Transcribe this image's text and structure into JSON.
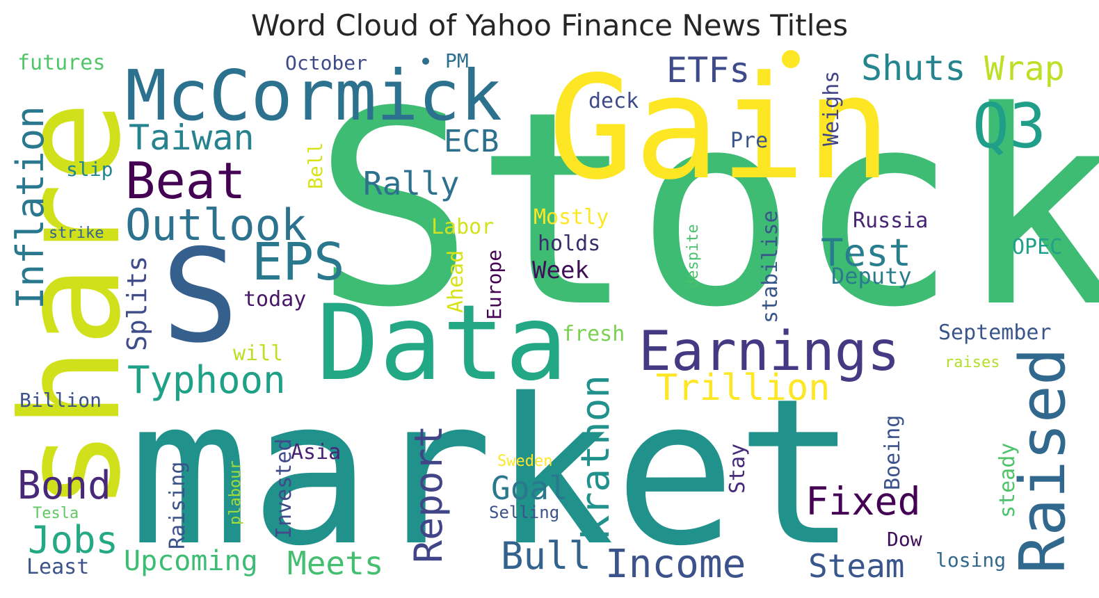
{
  "chart_data": {
    "type": "wordcloud",
    "title": "Word Cloud of Yahoo Finance News Titles",
    "colormap": "viridis",
    "words": [
      {
        "text": "Stock",
        "weight": 1.0,
        "color": "#3fbc73"
      },
      {
        "text": "market",
        "weight": 0.95,
        "color": "#21918c"
      },
      {
        "text": "Gain",
        "weight": 0.62,
        "color": "#fde725"
      },
      {
        "text": "share",
        "weight": 0.58,
        "color": "#d0e11c"
      },
      {
        "text": "S",
        "weight": 0.55,
        "color": "#355f8d"
      },
      {
        "text": "Data",
        "weight": 0.42,
        "color": "#22a884"
      },
      {
        "text": "McCormick",
        "weight": 0.3,
        "color": "#2c728e"
      },
      {
        "text": "Raised",
        "weight": 0.28,
        "color": "#31688e"
      },
      {
        "text": "Q3",
        "weight": 0.26,
        "color": "#1f9e89"
      },
      {
        "text": "Earnings",
        "weight": 0.22,
        "color": "#443983"
      },
      {
        "text": "EPS",
        "weight": 0.2,
        "color": "#2a788e"
      },
      {
        "text": "Beat",
        "weight": 0.19,
        "color": "#440154"
      },
      {
        "text": "Krathon",
        "weight": 0.15,
        "color": "#21918c"
      },
      {
        "text": "Outlook",
        "weight": 0.15,
        "color": "#2c728e"
      },
      {
        "text": "Inflation",
        "weight": 0.14,
        "color": "#2a788e"
      },
      {
        "text": "Income",
        "weight": 0.14,
        "color": "#3b528b"
      },
      {
        "text": "Report",
        "weight": 0.14,
        "color": "#414487"
      },
      {
        "text": "Trillion",
        "weight": 0.13,
        "color": "#fde725"
      },
      {
        "text": "Typhoon",
        "weight": 0.13,
        "color": "#1fa187"
      },
      {
        "text": "Test",
        "weight": 0.13,
        "color": "#287d8e"
      },
      {
        "text": "Bond",
        "weight": 0.13,
        "color": "#482878"
      },
      {
        "text": "Jobs",
        "weight": 0.13,
        "color": "#23a983"
      },
      {
        "text": "Fixed",
        "weight": 0.12,
        "color": "#440154"
      },
      {
        "text": "Bull",
        "weight": 0.12,
        "color": "#33638d"
      },
      {
        "text": "Taiwan",
        "weight": 0.12,
        "color": "#26828e"
      },
      {
        "text": "ETFs",
        "weight": 0.12,
        "color": "#3e4a89"
      },
      {
        "text": "Shuts",
        "weight": 0.12,
        "color": "#25858e"
      },
      {
        "text": "Wrap",
        "weight": 0.11,
        "color": "#bddf26"
      },
      {
        "text": "Meets",
        "weight": 0.11,
        "color": "#44bf70"
      },
      {
        "text": "Steam",
        "weight": 0.11,
        "color": "#39568c"
      },
      {
        "text": "Rally",
        "weight": 0.11,
        "color": "#2d718e"
      },
      {
        "text": "Goal",
        "weight": 0.11,
        "color": "#2a788e"
      },
      {
        "text": "ECB",
        "weight": 0.1,
        "color": "#2d708e"
      },
      {
        "text": "Upcoming",
        "weight": 0.1,
        "color": "#3dbc74"
      },
      {
        "text": "Splits",
        "weight": 0.09,
        "color": "#3e4c8a"
      },
      {
        "text": "Week",
        "weight": 0.09,
        "color": "#3f0e59"
      },
      {
        "text": "Weighs",
        "weight": 0.08,
        "color": "#414487"
      },
      {
        "text": "Boeing",
        "weight": 0.08,
        "color": "#3b518b"
      },
      {
        "text": "Russia",
        "weight": 0.08,
        "color": "#482475"
      },
      {
        "text": "Deputy",
        "weight": 0.08,
        "color": "#287c8e"
      },
      {
        "text": "September",
        "weight": 0.08,
        "color": "#39568c"
      },
      {
        "text": "OPEC",
        "weight": 0.08,
        "color": "#1fa088"
      },
      {
        "text": "stabilise",
        "weight": 0.08,
        "color": "#39568c"
      },
      {
        "text": "Mostly",
        "weight": 0.08,
        "color": "#fde725"
      },
      {
        "text": "holds",
        "weight": 0.08,
        "color": "#3b2c6b"
      },
      {
        "text": "Invested",
        "weight": 0.08,
        "color": "#3e4a89"
      },
      {
        "text": "Raising",
        "weight": 0.08,
        "color": "#3b528b"
      },
      {
        "text": "Asia",
        "weight": 0.08,
        "color": "#482475"
      },
      {
        "text": "steady",
        "weight": 0.08,
        "color": "#4ec36b"
      },
      {
        "text": "Stay",
        "weight": 0.08,
        "color": "#472a7a"
      },
      {
        "text": "fresh",
        "weight": 0.08,
        "color": "#7ad151"
      },
      {
        "text": "Labor",
        "weight": 0.08,
        "color": "#d2e21b"
      },
      {
        "text": "Ahead",
        "weight": 0.08,
        "color": "#d8e219"
      },
      {
        "text": "Europe",
        "weight": 0.07,
        "color": "#440154"
      },
      {
        "text": "Dow",
        "weight": 0.07,
        "color": "#3f0e59"
      },
      {
        "text": "losing",
        "weight": 0.07,
        "color": "#31688e"
      },
      {
        "text": "Least",
        "weight": 0.07,
        "color": "#3b528b"
      },
      {
        "text": "Billion",
        "weight": 0.07,
        "color": "#3b528b"
      },
      {
        "text": "today",
        "weight": 0.07,
        "color": "#481769"
      },
      {
        "text": "deck",
        "weight": 0.07,
        "color": "#3e4a89"
      },
      {
        "text": "Pre",
        "weight": 0.07,
        "color": "#39568c"
      },
      {
        "text": "October",
        "weight": 0.07,
        "color": "#3e4a89"
      },
      {
        "text": "futures",
        "weight": 0.07,
        "color": "#52c569"
      },
      {
        "text": "slip",
        "weight": 0.07,
        "color": "#25858e"
      },
      {
        "text": "PM",
        "weight": 0.06,
        "color": "#2d708e"
      },
      {
        "text": "will",
        "weight": 0.06,
        "color": "#bddf26"
      },
      {
        "text": "Bell",
        "weight": 0.06,
        "color": "#d8e219"
      },
      {
        "text": "despite",
        "weight": 0.06,
        "color": "#4ac16d"
      },
      {
        "text": "Selling",
        "weight": 0.06,
        "color": "#3b528b"
      },
      {
        "text": "Sweden",
        "weight": 0.05,
        "color": "#fde725"
      },
      {
        "text": "raises",
        "weight": 0.05,
        "color": "#b5de2b"
      },
      {
        "text": "strike",
        "weight": 0.05,
        "color": "#33638d"
      },
      {
        "text": "plabour",
        "weight": 0.05,
        "color": "#a5db36"
      },
      {
        "text": "Tesla",
        "weight": 0.05,
        "color": "#5ec962"
      }
    ]
  }
}
